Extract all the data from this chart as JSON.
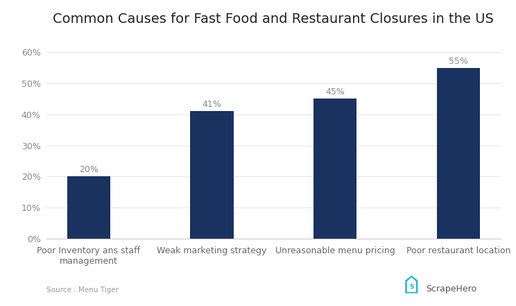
{
  "title": "Common Causes for Fast Food and Restaurant Closures in the US",
  "categories": [
    "Poor Inventory ans staff\nmanagement",
    "Weak marketing strategy",
    "Unreasonable menu pricing",
    "Poor restaurant location"
  ],
  "values": [
    20,
    41,
    45,
    55
  ],
  "bar_color": "#1a3260",
  "label_color": "#888888",
  "value_labels": [
    "20%",
    "41%",
    "45%",
    "55%"
  ],
  "yticks": [
    0,
    10,
    20,
    30,
    40,
    50,
    60
  ],
  "ytick_labels": [
    "0%",
    "10%",
    "20%",
    "30%",
    "40%",
    "50%",
    "60%"
  ],
  "ylim": [
    0,
    65
  ],
  "source_text": "Source : Menu Tiger",
  "background_color": "#ffffff",
  "title_fontsize": 14,
  "label_fontsize": 9,
  "tick_fontsize": 9,
  "bar_width": 0.35,
  "brand_name": "ScrapeHero",
  "brand_color": "#29b6d4",
  "grid_color": "#e8e8e8"
}
